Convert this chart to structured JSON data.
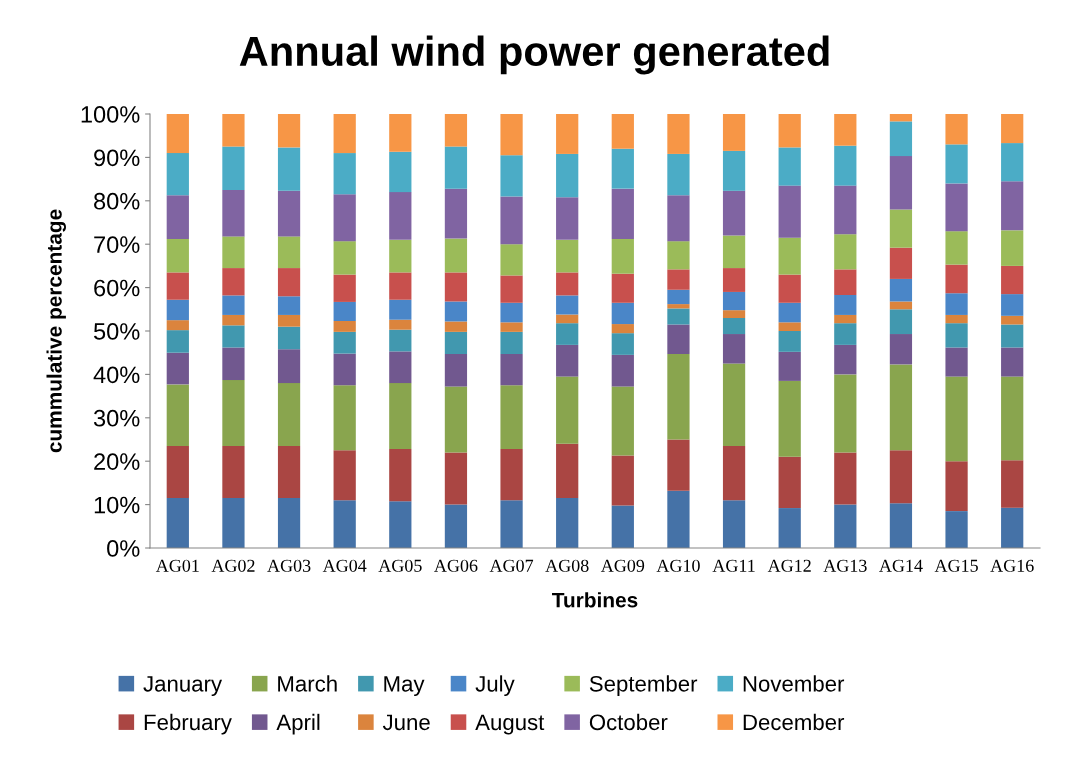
{
  "chart_data": {
    "type": "bar",
    "stacked": true,
    "title": "Annual wind power generated",
    "xlabel": "Turbines",
    "ylabel": "cummulative percentage",
    "categories": [
      "AG01",
      "AG02",
      "AG03",
      "AG04",
      "AG05",
      "AG06",
      "AG07",
      "AG08",
      "AG09",
      "AG10",
      "AG11",
      "AG12",
      "AG13",
      "AG14",
      "AG15",
      "AG16"
    ],
    "ylim": [
      0,
      100
    ],
    "yticks": [
      {
        "value": 0,
        "label": "0%"
      },
      {
        "value": 10,
        "label": "10%"
      },
      {
        "value": 20,
        "label": "20%"
      },
      {
        "value": 30,
        "label": "30%"
      },
      {
        "value": 40,
        "label": "40%"
      },
      {
        "value": 50,
        "label": "50%"
      },
      {
        "value": 60,
        "label": "60%"
      },
      {
        "value": 70,
        "label": "70%"
      },
      {
        "value": 80,
        "label": "80%"
      },
      {
        "value": 90,
        "label": "90%"
      },
      {
        "value": 100,
        "label": "100%"
      }
    ],
    "grid": false,
    "legend": "bottom",
    "series": [
      {
        "name": "January",
        "color": "#4572a7",
        "values": [
          11.5,
          11.5,
          11.5,
          11,
          10.8,
          10,
          11,
          11.5,
          9.8,
          13.2,
          11,
          9.2,
          10,
          10.3,
          8.5,
          9.3
        ]
      },
      {
        "name": "February",
        "color": "#aa4643",
        "values": [
          12,
          12,
          12,
          11.5,
          12,
          12,
          11.8,
          12.5,
          11.5,
          11.8,
          12.5,
          11.8,
          12,
          12.2,
          11.5,
          10.9
        ]
      },
      {
        "name": "March",
        "color": "#89a54e",
        "values": [
          14.2,
          15.2,
          14.5,
          15,
          15.2,
          15.2,
          14.7,
          15.5,
          15.9,
          19.7,
          19,
          17.5,
          18,
          19.8,
          19.5,
          19.3
        ]
      },
      {
        "name": "April",
        "color": "#71588f",
        "values": [
          7.3,
          7.5,
          7.8,
          7.3,
          7.3,
          7.5,
          7.2,
          7.3,
          7.3,
          6.8,
          6.8,
          6.7,
          6.8,
          7,
          6.7,
          6.7
        ]
      },
      {
        "name": "May",
        "color": "#4198af",
        "values": [
          5.2,
          5.1,
          5.2,
          5,
          5,
          5.1,
          5.1,
          5,
          5,
          3.7,
          3.7,
          4.8,
          5,
          5.7,
          5.6,
          5.3
        ]
      },
      {
        "name": "June",
        "color": "#db843d",
        "values": [
          2.3,
          2.4,
          2.7,
          2.5,
          2.3,
          2.4,
          2.2,
          2,
          2.1,
          1,
          1.8,
          2,
          1.9,
          1.8,
          1.9,
          2
        ]
      },
      {
        "name": "July",
        "color": "#4a86c8",
        "values": [
          4.7,
          4.5,
          4.3,
          4.4,
          4.6,
          4.6,
          4.5,
          4.4,
          4.9,
          3.3,
          4.2,
          4.5,
          4.6,
          5.2,
          5,
          5
        ]
      },
      {
        "name": "August",
        "color": "#c8504d",
        "values": [
          6.3,
          6.3,
          6.5,
          6.3,
          6.3,
          6.7,
          6.3,
          5.3,
          6.7,
          4.7,
          5.5,
          6.5,
          5.9,
          7.2,
          6.6,
          6.5
        ]
      },
      {
        "name": "September",
        "color": "#9bbb59",
        "values": [
          7.7,
          7.3,
          7.3,
          7.7,
          7.5,
          7.8,
          7.2,
          7.5,
          8,
          6.5,
          7.5,
          8.5,
          8.1,
          8.8,
          7.7,
          8.2
        ]
      },
      {
        "name": "October",
        "color": "#8064a2",
        "values": [
          10.1,
          10.7,
          10.5,
          10.8,
          11,
          11.5,
          11,
          9.8,
          11.6,
          10.6,
          10.3,
          12,
          11.2,
          12.3,
          11,
          11.3
        ]
      },
      {
        "name": "November",
        "color": "#4bacc6",
        "values": [
          9.7,
          10,
          10,
          9.5,
          9.3,
          9.7,
          9.5,
          10,
          9.2,
          9.5,
          9.2,
          8.8,
          9.2,
          8,
          9,
          8.8
        ]
      },
      {
        "name": "December",
        "color": "#f79646",
        "values": [
          9,
          7.5,
          7.7,
          9,
          8.7,
          7.5,
          9.5,
          9.2,
          8,
          9.2,
          8.5,
          7.7,
          7.3,
          1.7,
          7,
          6.7
        ]
      }
    ]
  }
}
